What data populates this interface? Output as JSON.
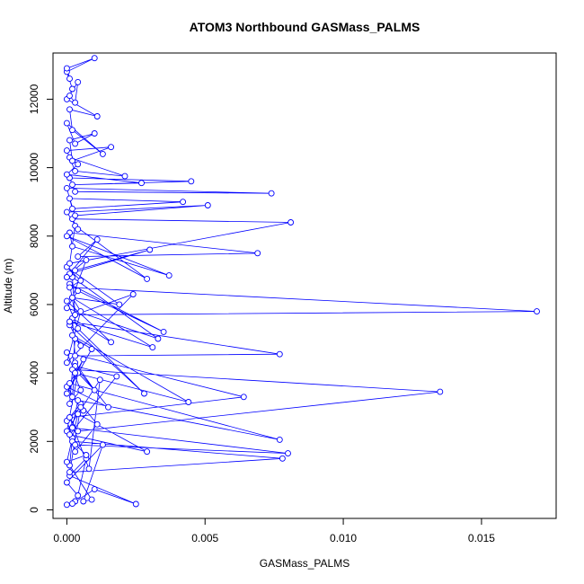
{
  "chart_data": {
    "type": "line",
    "title": "ATOM3 Northbound GASMass_PALMS",
    "xlabel": "GASMass_PALMS",
    "ylabel": "Altitude (m)",
    "xlim": [
      -0.0005,
      0.0177
    ],
    "ylim": [
      -250,
      13350
    ],
    "xticks": [
      {
        "value": 0.0,
        "label": "0.000"
      },
      {
        "value": 0.005,
        "label": "0.005"
      },
      {
        "value": 0.01,
        "label": "0.010"
      },
      {
        "value": 0.015,
        "label": "0.015"
      }
    ],
    "yticks": [
      {
        "value": 0,
        "label": "0"
      },
      {
        "value": 2000,
        "label": "2000"
      },
      {
        "value": 4000,
        "label": "4000"
      },
      {
        "value": 6000,
        "label": "6000"
      },
      {
        "value": 8000,
        "label": "8000"
      },
      {
        "value": 10000,
        "label": "10000"
      },
      {
        "value": 12000,
        "label": "12000"
      }
    ],
    "grid": false,
    "legend": "none",
    "color": "#0000ff",
    "marker": "open-circle",
    "series": [
      {
        "x": [
          0.0,
          0.0003,
          0.0002,
          0.001,
          0.0025,
          0.0001,
          0.0007,
          0.0004,
          0.0,
          0.0013,
          0.0006,
          0.0009,
          0.0001,
          0.0002,
          0.0003,
          0.0011,
          0.0005,
          0.0001,
          0.0008,
          0.0012,
          0.0,
          0.0004,
          0.001,
          0.0003,
          0.0002,
          0.0006,
          0.0,
          0.0015,
          0.0003,
          0.0018,
          0.0001,
          0.0029,
          0.0004,
          0.0,
          0.0007,
          0.0002,
          0.0078,
          0.0001,
          0.0005,
          0.0,
          0.0003,
          0.008,
          0.0002,
          0.0004,
          0.0077,
          0.0001,
          0.0006,
          0.0,
          0.0009,
          0.0003,
          0.0001,
          0.0005,
          0.0002,
          0.0135,
          0.0004,
          0.0001,
          0.0064,
          0.0,
          0.0003,
          0.0044,
          0.0002,
          0.0005,
          0.0001,
          0.0028,
          0.0004,
          0.0,
          0.0016,
          0.0002,
          0.0003,
          0.0077,
          0.0001,
          0.0031,
          0.0002,
          0.0005,
          0.0,
          0.0024,
          0.0003,
          0.0001,
          0.0035,
          0.0004,
          0.0,
          0.0033,
          0.0002,
          0.0003,
          0.017,
          0.0001,
          0.0005,
          0.0,
          0.0019,
          0.0002,
          0.0007,
          0.0001,
          0.003,
          0.0003,
          0.0,
          0.0011,
          0.0004,
          0.0069,
          0.0001,
          0.0002,
          0.0037,
          0.0,
          0.0029,
          0.0003,
          0.0001,
          0.0081,
          0.0002,
          0.0004,
          0.0,
          0.0051,
          0.0003,
          0.0001,
          0.0042,
          0.0002,
          0.0,
          0.0074,
          0.0003,
          0.0001,
          0.0045,
          0.0002,
          0.0027,
          0.0,
          0.0004,
          0.0001,
          0.0021,
          0.0003,
          0.0,
          0.0016,
          0.0002,
          0.0001,
          0.001,
          0.0003,
          0.0,
          0.0013,
          0.0002,
          0.0001,
          0.0011,
          0.0,
          0.0004,
          0.0003,
          0.0001,
          0.0002,
          0.0,
          0.001,
          0.0,
          0.0001
        ],
        "y": [
          150,
          250,
          180,
          600,
          170,
          1000,
          1500,
          420,
          800,
          1900,
          250,
          300,
          1300,
          2100,
          1700,
          2500,
          3100,
          2700,
          1200,
          3800,
          2300,
          4000,
          3500,
          4300,
          3300,
          2900,
          3600,
          3000,
          4200,
          3900,
          2200,
          1700,
          2800,
          1400,
          1600,
          2000,
          1500,
          1100,
          3000,
          2600,
          1900,
          1650,
          2400,
          3200,
          2050,
          3700,
          4400,
          3400,
          4700,
          5000,
          3100,
          3500,
          4100,
          3450,
          2300,
          2700,
          3300,
          4600,
          4000,
          3150,
          5100,
          4800,
          5400,
          3400,
          5300,
          6100,
          4900,
          5600,
          4500,
          4550,
          5500,
          4750,
          6200,
          5800,
          4300,
          6300,
          5700,
          6600,
          5200,
          6400,
          5900,
          5000,
          6800,
          5700,
          5800,
          6500,
          6700,
          7100,
          6000,
          6200,
          7300,
          6900,
          7600,
          7000,
          6800,
          7900,
          7400,
          7500,
          8100,
          7700,
          6850,
          8000,
          6750,
          8300,
          7200,
          8400,
          8500,
          8200,
          8700,
          8900,
          8600,
          9100,
          9000,
          8800,
          9400,
          9250,
          9300,
          9700,
          9600,
          9500,
          9550,
          9800,
          10100,
          10300,
          9750,
          9900,
          10500,
          10600,
          10200,
          10800,
          11000,
          10700,
          11300,
          10400,
          11100,
          11700,
          11500,
          12000,
          12500,
          11900,
          12100,
          12300,
          12800,
          13200,
          12900,
          12600
        ]
      }
    ]
  }
}
